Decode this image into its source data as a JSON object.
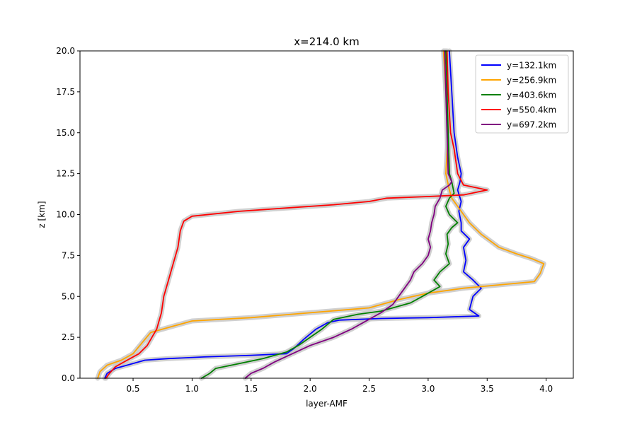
{
  "chart_data": {
    "type": "line",
    "title": "x=214.0 km",
    "xlabel": "layer-AMF",
    "ylabel": "z [km]",
    "xlim": [
      0.05,
      4.23
    ],
    "ylim": [
      0,
      20
    ],
    "xticks": [
      0.5,
      1.0,
      1.5,
      2.0,
      2.5,
      3.0,
      3.5,
      4.0
    ],
    "xtick_labels": [
      "0.5",
      "1.0",
      "1.5",
      "2.0",
      "2.5",
      "3.0",
      "3.5",
      "4.0"
    ],
    "yticks": [
      0,
      2.5,
      5,
      7.5,
      10,
      12.5,
      15,
      17.5,
      20
    ],
    "ytick_labels": [
      "0.0",
      "2.5",
      "5.0",
      "7.5",
      "10.0",
      "12.5",
      "15.0",
      "17.5",
      "20.0"
    ],
    "grid": false,
    "legend_position": "upper right",
    "uncertainty_band_color": "#c8c8c8",
    "series": [
      {
        "name": "y=132.1km",
        "color": "#0000ff",
        "points": [
          [
            0.26,
            0
          ],
          [
            0.28,
            0.3
          ],
          [
            0.35,
            0.6
          ],
          [
            0.45,
            0.8
          ],
          [
            0.6,
            1.1
          ],
          [
            0.8,
            1.2
          ],
          [
            1.1,
            1.3
          ],
          [
            1.5,
            1.4
          ],
          [
            1.8,
            1.5
          ],
          [
            1.86,
            1.8
          ],
          [
            1.95,
            2.4
          ],
          [
            2.05,
            3.0
          ],
          [
            2.15,
            3.4
          ],
          [
            2.25,
            3.55
          ],
          [
            2.6,
            3.65
          ],
          [
            3.0,
            3.7
          ],
          [
            3.43,
            3.8
          ],
          [
            3.35,
            4.2
          ],
          [
            3.38,
            5.0
          ],
          [
            3.45,
            5.5
          ],
          [
            3.38,
            6.0
          ],
          [
            3.3,
            6.5
          ],
          [
            3.32,
            7.2
          ],
          [
            3.3,
            8.0
          ],
          [
            3.35,
            8.5
          ],
          [
            3.28,
            9.0
          ],
          [
            3.28,
            9.5
          ],
          [
            3.26,
            10.2
          ],
          [
            3.28,
            10.8
          ],
          [
            3.25,
            11.5
          ],
          [
            3.27,
            12.0
          ],
          [
            3.28,
            12.5
          ],
          [
            3.25,
            13.5
          ],
          [
            3.22,
            15.0
          ],
          [
            3.2,
            17.5
          ],
          [
            3.18,
            20.0
          ]
        ]
      },
      {
        "name": "y=256.9km",
        "color": "#ffa500",
        "points": [
          [
            0.2,
            0
          ],
          [
            0.22,
            0.4
          ],
          [
            0.28,
            0.8
          ],
          [
            0.4,
            1.1
          ],
          [
            0.5,
            1.5
          ],
          [
            0.58,
            2.2
          ],
          [
            0.65,
            2.8
          ],
          [
            0.85,
            3.2
          ],
          [
            1.0,
            3.5
          ],
          [
            1.5,
            3.7
          ],
          [
            2.0,
            4.0
          ],
          [
            2.5,
            4.3
          ],
          [
            2.75,
            4.8
          ],
          [
            3.0,
            5.2
          ],
          [
            3.3,
            5.5
          ],
          [
            3.6,
            5.7
          ],
          [
            3.9,
            5.9
          ],
          [
            3.95,
            6.4
          ],
          [
            3.98,
            7.0
          ],
          [
            3.88,
            7.3
          ],
          [
            3.75,
            7.6
          ],
          [
            3.6,
            8.0
          ],
          [
            3.45,
            8.8
          ],
          [
            3.35,
            9.5
          ],
          [
            3.3,
            10.0
          ],
          [
            3.25,
            10.5
          ],
          [
            3.2,
            11.0
          ],
          [
            3.18,
            11.5
          ],
          [
            3.15,
            12.5
          ],
          [
            3.17,
            15.0
          ],
          [
            3.15,
            17.5
          ],
          [
            3.13,
            20.0
          ]
        ]
      },
      {
        "name": "y=403.6km",
        "color": "#008000",
        "points": [
          [
            1.08,
            0
          ],
          [
            1.15,
            0.3
          ],
          [
            1.2,
            0.6
          ],
          [
            1.4,
            0.9
          ],
          [
            1.6,
            1.2
          ],
          [
            1.8,
            1.6
          ],
          [
            1.9,
            2.0
          ],
          [
            2.0,
            2.5
          ],
          [
            2.1,
            3.0
          ],
          [
            2.2,
            3.6
          ],
          [
            2.4,
            3.9
          ],
          [
            2.6,
            4.1
          ],
          [
            2.7,
            4.3
          ],
          [
            2.85,
            4.6
          ],
          [
            2.95,
            5.0
          ],
          [
            3.1,
            5.6
          ],
          [
            3.05,
            6.0
          ],
          [
            3.1,
            6.5
          ],
          [
            3.18,
            7.0
          ],
          [
            3.15,
            7.6
          ],
          [
            3.17,
            8.2
          ],
          [
            3.16,
            8.8
          ],
          [
            3.2,
            9.2
          ],
          [
            3.25,
            9.5
          ],
          [
            3.18,
            10.0
          ],
          [
            3.15,
            10.5
          ],
          [
            3.18,
            11.0
          ],
          [
            3.22,
            11.3
          ],
          [
            3.2,
            12.0
          ],
          [
            3.18,
            12.5
          ],
          [
            3.17,
            15.0
          ],
          [
            3.16,
            17.5
          ],
          [
            3.15,
            20.0
          ]
        ]
      },
      {
        "name": "y=550.4km",
        "color": "#ff0000",
        "points": [
          [
            0.27,
            0
          ],
          [
            0.3,
            0.3
          ],
          [
            0.35,
            0.7
          ],
          [
            0.45,
            1.1
          ],
          [
            0.55,
            1.5
          ],
          [
            0.62,
            2.0
          ],
          [
            0.66,
            2.5
          ],
          [
            0.7,
            3.0
          ],
          [
            0.72,
            3.5
          ],
          [
            0.74,
            4.0
          ],
          [
            0.76,
            5.0
          ],
          [
            0.8,
            6.0
          ],
          [
            0.84,
            7.0
          ],
          [
            0.88,
            8.0
          ],
          [
            0.9,
            9.0
          ],
          [
            0.93,
            9.6
          ],
          [
            1.0,
            9.9
          ],
          [
            1.4,
            10.2
          ],
          [
            1.8,
            10.4
          ],
          [
            2.2,
            10.6
          ],
          [
            2.5,
            10.8
          ],
          [
            2.65,
            11.0
          ],
          [
            3.0,
            11.1
          ],
          [
            3.3,
            11.2
          ],
          [
            3.5,
            11.5
          ],
          [
            3.3,
            11.8
          ],
          [
            3.25,
            12.5
          ],
          [
            3.22,
            14.0
          ],
          [
            3.19,
            15.0
          ],
          [
            3.17,
            17.5
          ],
          [
            3.16,
            20.0
          ]
        ]
      },
      {
        "name": "y=697.2km",
        "color": "#800080",
        "points": [
          [
            1.45,
            0
          ],
          [
            1.5,
            0.3
          ],
          [
            1.6,
            0.6
          ],
          [
            1.7,
            1.0
          ],
          [
            1.85,
            1.5
          ],
          [
            2.0,
            2.0
          ],
          [
            2.2,
            2.5
          ],
          [
            2.35,
            3.0
          ],
          [
            2.45,
            3.4
          ],
          [
            2.6,
            4.0
          ],
          [
            2.7,
            4.5
          ],
          [
            2.75,
            5.0
          ],
          [
            2.8,
            5.5
          ],
          [
            2.85,
            6.0
          ],
          [
            2.88,
            6.5
          ],
          [
            2.95,
            7.0
          ],
          [
            3.0,
            7.5
          ],
          [
            3.02,
            8.0
          ],
          [
            3.0,
            8.5
          ],
          [
            3.02,
            9.0
          ],
          [
            3.03,
            9.5
          ],
          [
            3.05,
            10.0
          ],
          [
            3.06,
            10.5
          ],
          [
            3.1,
            11.0
          ],
          [
            3.12,
            11.5
          ],
          [
            3.18,
            11.8
          ],
          [
            3.2,
            12.0
          ],
          [
            3.17,
            12.5
          ],
          [
            3.16,
            15.0
          ],
          [
            3.15,
            17.5
          ],
          [
            3.14,
            20.0
          ]
        ]
      }
    ]
  }
}
